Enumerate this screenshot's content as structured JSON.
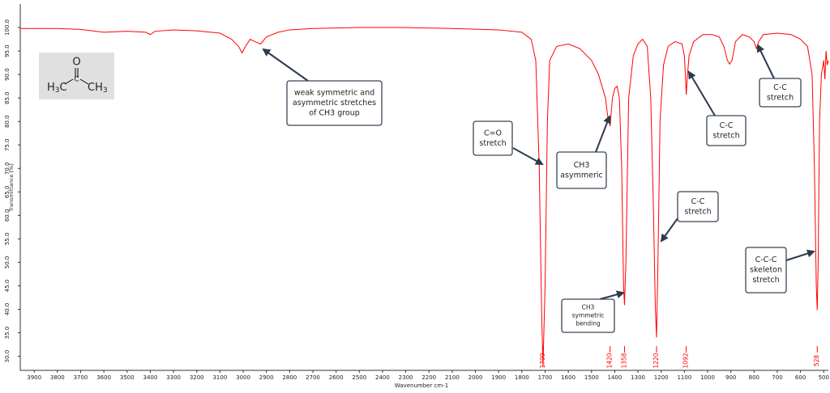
{
  "chart_data": {
    "type": "line",
    "color": "#ff0000",
    "x_label": "Wavenumber cm-1",
    "y_label": "Transmittance [%]",
    "xlim": [
      3960,
      480
    ],
    "ylim": [
      27,
      105
    ],
    "xticks": [
      3900,
      3800,
      3700,
      3600,
      3500,
      3400,
      3300,
      3200,
      3100,
      3000,
      2900,
      2800,
      2700,
      2600,
      2500,
      2400,
      2300,
      2200,
      2100,
      2000,
      1900,
      1800,
      1700,
      1600,
      1500,
      1400,
      1300,
      1200,
      1100,
      1000,
      900,
      800,
      700,
      600,
      500
    ],
    "yticks": [
      {
        "value": 30,
        "label": "30.0"
      },
      {
        "value": 35,
        "label": "35.0"
      },
      {
        "value": 40,
        "label": "40.0"
      },
      {
        "value": 45,
        "label": "45.0"
      },
      {
        "value": 50,
        "label": "50.0"
      },
      {
        "value": 55,
        "label": "55.0"
      },
      {
        "value": 60,
        "label": "60.0"
      },
      {
        "value": 65,
        "label": "65.0"
      },
      {
        "value": 70,
        "label": "70.0"
      },
      {
        "value": 75,
        "label": "75.0"
      },
      {
        "value": 80,
        "label": "80.0"
      },
      {
        "value": 85,
        "label": "85.0"
      },
      {
        "value": 90,
        "label": "90.0"
      },
      {
        "value": 95,
        "label": "95.0"
      },
      {
        "value": 100,
        "label": "100.0"
      }
    ],
    "x": [
      3960,
      3800,
      3700,
      3600,
      3500,
      3420,
      3400,
      3380,
      3300,
      3200,
      3100,
      3050,
      3020,
      3005,
      2990,
      2970,
      2950,
      2925,
      2900,
      2850,
      2800,
      2700,
      2500,
      2300,
      2100,
      1900,
      1800,
      1760,
      1740,
      1725,
      1715,
      1709,
      1700,
      1690,
      1680,
      1650,
      1600,
      1550,
      1500,
      1470,
      1440,
      1430,
      1420,
      1410,
      1400,
      1390,
      1380,
      1370,
      1362,
      1358,
      1352,
      1340,
      1320,
      1300,
      1280,
      1260,
      1245,
      1235,
      1225,
      1220,
      1214,
      1205,
      1190,
      1170,
      1140,
      1110,
      1100,
      1095,
      1092,
      1088,
      1080,
      1060,
      1020,
      980,
      950,
      930,
      915,
      905,
      895,
      880,
      850,
      820,
      800,
      790,
      780,
      760,
      700,
      640,
      600,
      570,
      550,
      540,
      532,
      528,
      524,
      518,
      510,
      500,
      495,
      490,
      485,
      480
    ],
    "values": [
      99.8,
      99.8,
      99.6,
      99.0,
      99.2,
      99.0,
      98.5,
      99.2,
      99.5,
      99.3,
      98.8,
      97.5,
      96.0,
      94.6,
      96.0,
      97.5,
      97.0,
      96.5,
      98.0,
      99.0,
      99.5,
      99.8,
      100.0,
      100.0,
      99.8,
      99.5,
      99.0,
      97.5,
      93.0,
      70.0,
      40.0,
      27.8,
      45.0,
      80.0,
      93.0,
      96.0,
      96.5,
      95.5,
      93.0,
      90.0,
      85.0,
      81.0,
      79.0,
      85.0,
      87.0,
      87.5,
      85.0,
      70.0,
      45.0,
      40.9,
      50.0,
      85.0,
      94.0,
      96.5,
      97.5,
      96.0,
      85.0,
      65.0,
      40.0,
      34.0,
      50.0,
      80.0,
      92.0,
      96.0,
      97.0,
      96.5,
      94.0,
      89.0,
      85.7,
      89.0,
      94.0,
      97.0,
      98.5,
      98.5,
      98.0,
      96.0,
      93.0,
      92.2,
      93.0,
      97.0,
      98.5,
      98.0,
      97.0,
      95.5,
      97.0,
      98.5,
      98.8,
      98.5,
      97.5,
      96.0,
      90.0,
      70.0,
      45.0,
      39.8,
      50.0,
      80.0,
      90.0,
      93.0,
      89.0,
      95.0,
      92.0,
      93.0
    ],
    "peaks": [
      1709,
      1420,
      1358,
      1220,
      1092,
      528
    ],
    "annotations": [
      {
        "lines": [
          "weak symmetric and",
          "asymmetric stretches",
          "of CH3 group"
        ]
      },
      {
        "lines": [
          "C=O",
          "stretch"
        ]
      },
      {
        "lines": [
          "CH3",
          "asymmeric"
        ]
      },
      {
        "lines": [
          "CH3",
          "symmetric",
          "bending"
        ]
      },
      {
        "lines": [
          "C-C",
          "stretch"
        ]
      },
      {
        "lines": [
          "C-C",
          "stretch"
        ]
      },
      {
        "lines": [
          "C-C",
          "stretch"
        ]
      },
      {
        "lines": [
          "C-C-C",
          "skeleton",
          "stretch"
        ]
      }
    ],
    "structure": {
      "left": [
        "H",
        "3",
        "C"
      ],
      "center": "C",
      "top": "O",
      "right": [
        "CH",
        "3"
      ]
    }
  }
}
